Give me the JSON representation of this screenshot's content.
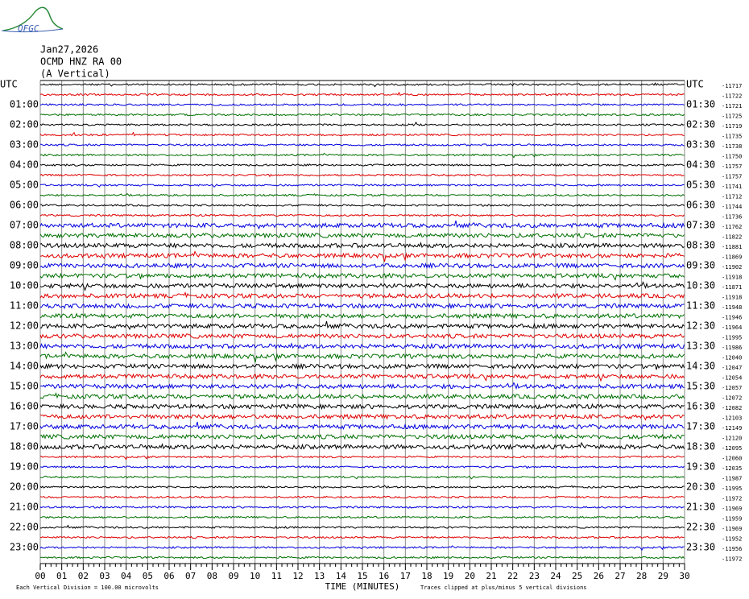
{
  "header": {
    "logo": "OFGC",
    "date": "Jan27,2026",
    "station": "OCMD HNZ RA 00",
    "component": "(A Vertical)"
  },
  "left_labels": [
    "UTC",
    "01:00",
    "02:00",
    "03:00",
    "04:00",
    "05:00",
    "06:00",
    "07:00",
    "08:00",
    "09:00",
    "10:00",
    "11:00",
    "12:00",
    "13:00",
    "14:00",
    "15:00",
    "16:00",
    "17:00",
    "18:00",
    "19:00",
    "20:00",
    "21:00",
    "22:00",
    "23:00"
  ],
  "right_labels": [
    "UTC",
    "01:30",
    "02:30",
    "03:30",
    "04:30",
    "05:30",
    "06:30",
    "07:30",
    "08:30",
    "09:30",
    "10:30",
    "11:30",
    "12:30",
    "13:30",
    "14:30",
    "15:30",
    "16:30",
    "17:30",
    "18:30",
    "19:30",
    "20:30",
    "21:30",
    "22:30",
    "23:30"
  ],
  "trace_offsets": [
    "-11717",
    "-11722",
    "-11721",
    "-11725",
    "-11719",
    "-11735",
    "-11738",
    "-11750",
    "-11757",
    "-11757",
    "-11741",
    "-11712",
    "-11744",
    "-11736",
    "-11762",
    "-11822",
    "-11881",
    "-11869",
    "-11902",
    "-11918",
    "-11871",
    "-11918",
    "-11948",
    "-11946",
    "-11964",
    "-11995",
    "-11986",
    "-12040",
    "-12047",
    "-12054",
    "-12057",
    "-12072",
    "-12082",
    "-12103",
    "-12149",
    "-12120",
    "-12095",
    "-12060",
    "-12035",
    "-11987",
    "-11995",
    "-11972",
    "-11969",
    "-11959",
    "-11969",
    "-11952",
    "-11956",
    "-11972"
  ],
  "trace_colors": [
    "#000000",
    "#e00000",
    "#0000e0",
    "#007000"
  ],
  "x_axis": {
    "title": "TIME (MINUTES)",
    "ticks": [
      "00",
      "01",
      "02",
      "03",
      "04",
      "05",
      "06",
      "07",
      "08",
      "09",
      "10",
      "11",
      "12",
      "13",
      "14",
      "15",
      "16",
      "17",
      "18",
      "19",
      "20",
      "21",
      "22",
      "23",
      "24",
      "25",
      "26",
      "27",
      "28",
      "29",
      "30"
    ]
  },
  "footer": {
    "scale": "Each Vertical Division =  100.00 microvolts",
    "clip": "Traces clipped at plus/minus 5 vertical divisions"
  }
}
